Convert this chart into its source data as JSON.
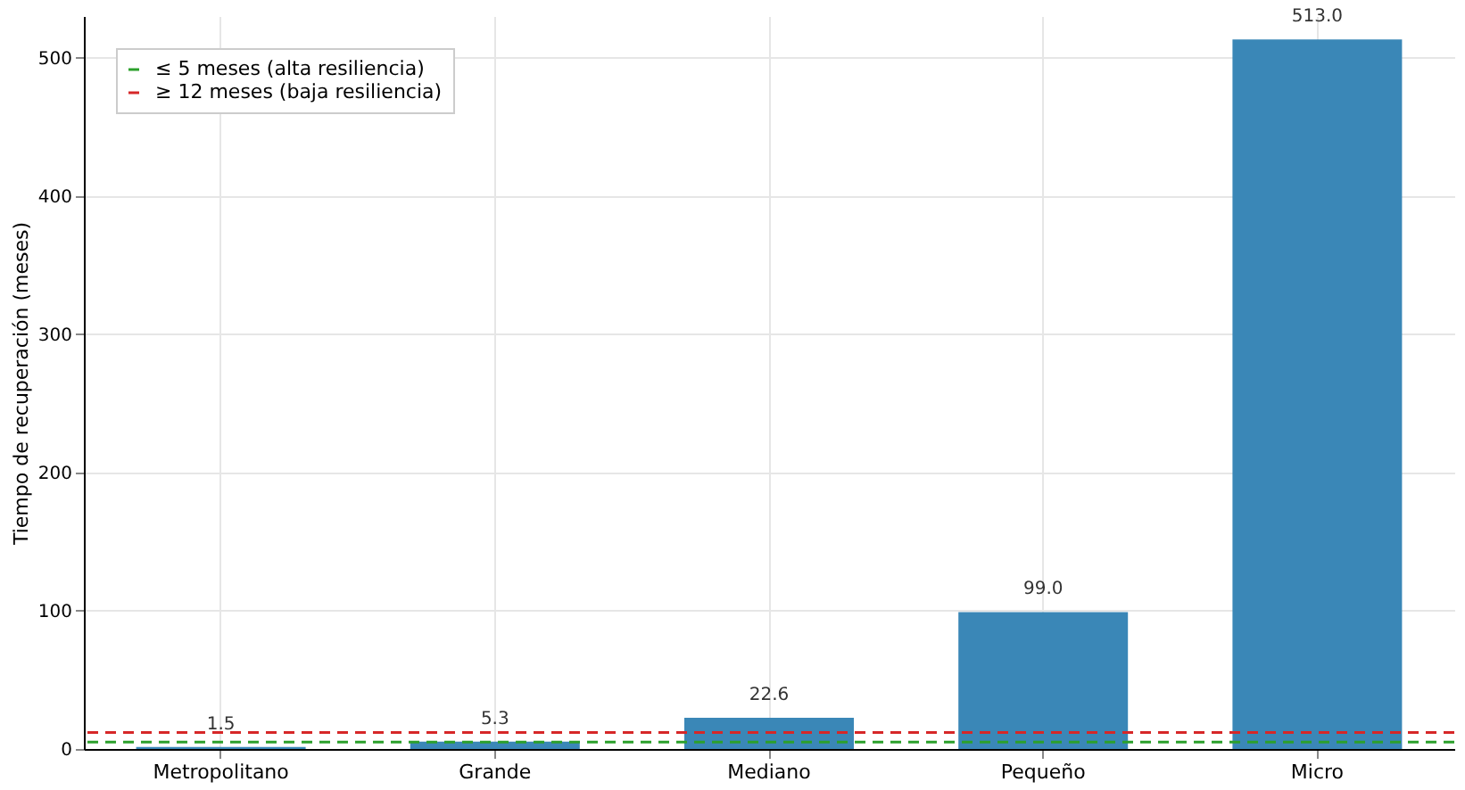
{
  "chart_data": {
    "type": "bar",
    "categories": [
      "Metropolitano",
      "Grande",
      "Mediano",
      "Pequeño",
      "Micro"
    ],
    "values": [
      1.5,
      5.3,
      22.6,
      99.0,
      513.0
    ],
    "value_labels": [
      "1.5",
      "5.3",
      "22.6",
      "99.0",
      "513.0"
    ],
    "color": "#3a87b7",
    "ylabel": "Tiempo de recuperación (meses)",
    "ylim": [
      0,
      530
    ],
    "yticks": [
      0,
      100,
      200,
      300,
      400,
      500
    ],
    "grid": true,
    "legend": "top left",
    "ref_lines": [
      {
        "axis": "y",
        "value": 5,
        "label": "≤ 5 meses (alta resiliencia)",
        "color": "#2ca02c",
        "line_style": "dashed"
      },
      {
        "axis": "y",
        "value": 12,
        "label": "≥ 12 meses (baja resiliencia)",
        "color": "#d62728",
        "line_style": "dashed"
      }
    ]
  }
}
